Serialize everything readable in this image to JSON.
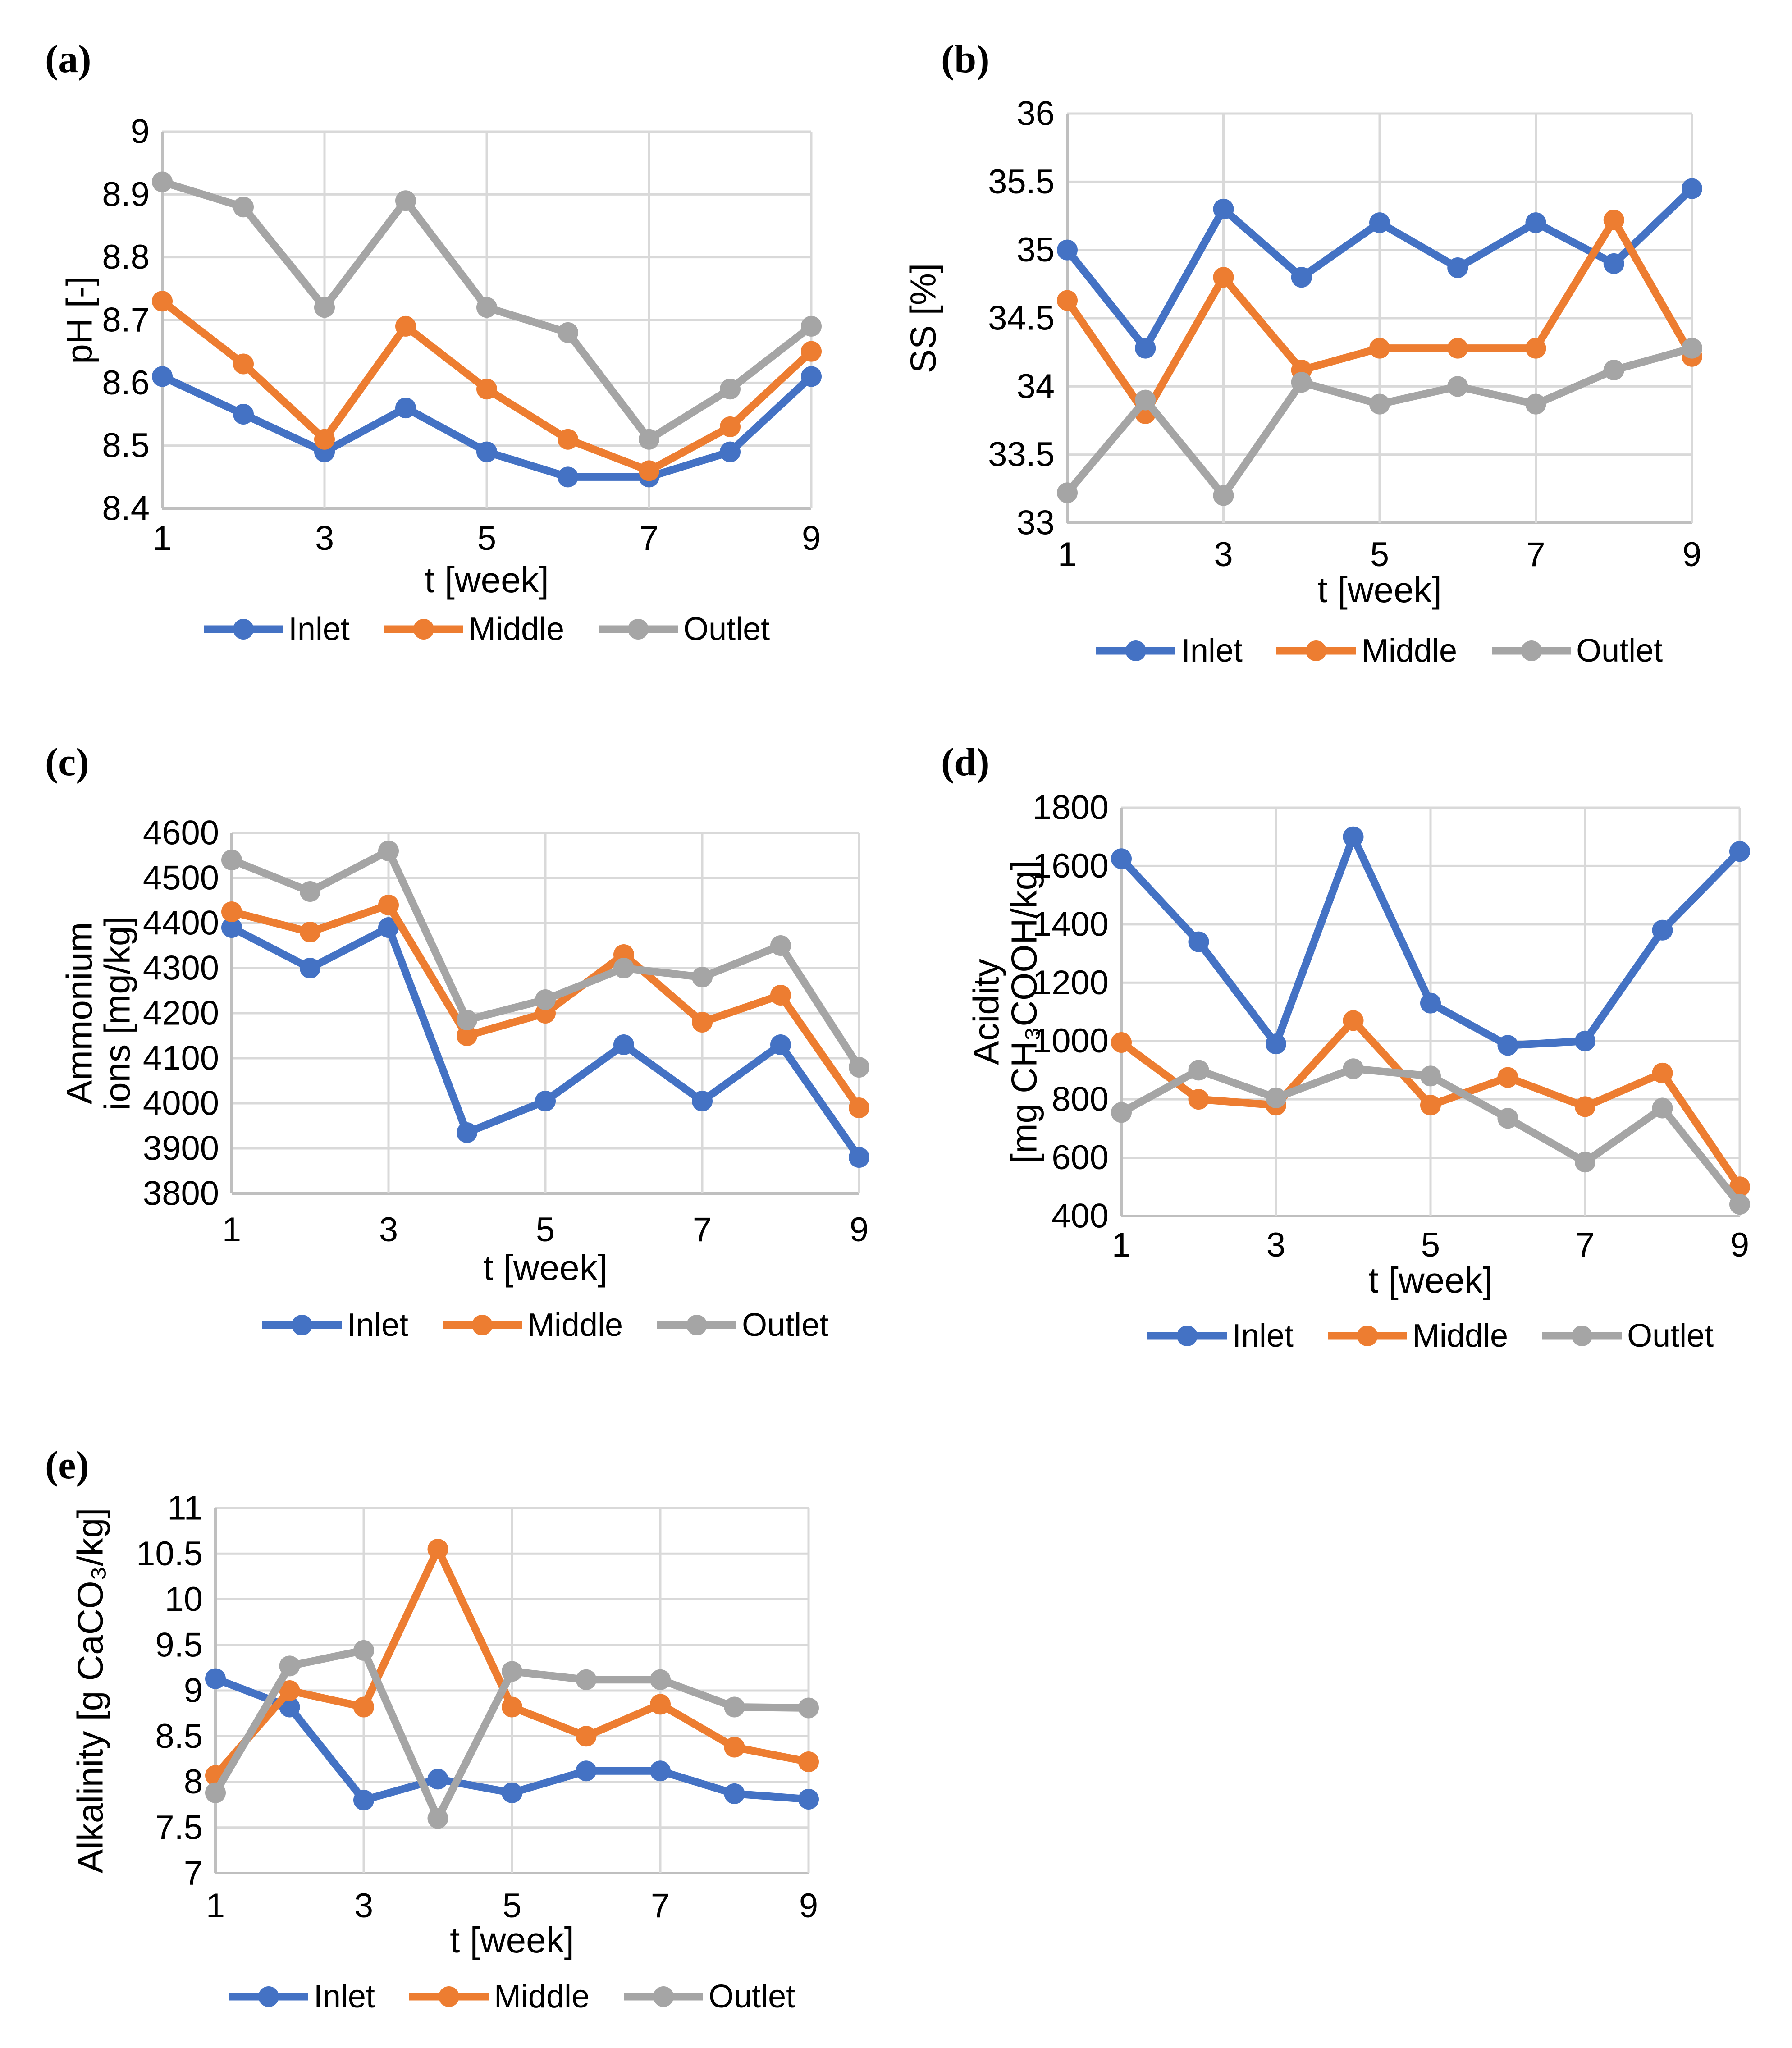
{
  "page": {
    "background": "#ffffff"
  },
  "colors": {
    "inlet": "#4472C4",
    "middle": "#ED7D31",
    "outlet": "#A5A5A5",
    "gridline": "#D9D9D9",
    "axis_line": "#BFBFBF",
    "text": "#000000"
  },
  "chart_data": [
    {
      "panel": "(a)",
      "type": "line",
      "title": "",
      "ylabel_lines": [
        "pH [-]"
      ],
      "xlabel": "t [week]",
      "x": [
        1,
        2,
        3,
        4,
        5,
        6,
        7,
        8,
        9
      ],
      "x_ticks_shown": [
        1,
        3,
        5,
        7,
        9
      ],
      "ylim": [
        8.4,
        9
      ],
      "ystep": 0.1,
      "grid": true,
      "legend_position": "bottom",
      "series": [
        {
          "name": "Inlet",
          "color": "#4472C4",
          "values": [
            8.61,
            8.55,
            8.49,
            8.56,
            8.49,
            8.45,
            8.45,
            8.49,
            8.61
          ]
        },
        {
          "name": "Middle",
          "color": "#ED7D31",
          "values": [
            8.73,
            8.63,
            8.51,
            8.69,
            8.59,
            8.51,
            8.46,
            8.53,
            8.65
          ]
        },
        {
          "name": "Outlet",
          "color": "#A5A5A5",
          "values": [
            8.92,
            8.88,
            8.72,
            8.89,
            8.72,
            8.68,
            8.51,
            8.59,
            8.69
          ]
        }
      ]
    },
    {
      "panel": "(b)",
      "type": "line",
      "title": "",
      "ylabel_lines": [
        "SS [%]"
      ],
      "xlabel": "t [week]",
      "x": [
        1,
        2,
        3,
        4,
        5,
        6,
        7,
        8,
        9
      ],
      "x_ticks_shown": [
        1,
        3,
        5,
        7,
        9
      ],
      "ylim": [
        33,
        36
      ],
      "ystep": 0.5,
      "grid": true,
      "legend_position": "bottom",
      "series": [
        {
          "name": "Inlet",
          "color": "#4472C4",
          "values": [
            35.0,
            34.28,
            35.3,
            34.8,
            35.2,
            34.87,
            35.2,
            34.9,
            35.45
          ]
        },
        {
          "name": "Middle",
          "color": "#ED7D31",
          "values": [
            34.63,
            33.8,
            34.8,
            34.12,
            34.28,
            34.28,
            34.28,
            35.22,
            34.22
          ]
        },
        {
          "name": "Outlet",
          "color": "#A5A5A5",
          "values": [
            33.22,
            33.9,
            33.2,
            34.03,
            33.87,
            34.0,
            33.87,
            34.12,
            34.28
          ]
        }
      ]
    },
    {
      "panel": "(c)",
      "type": "line",
      "title": "",
      "ylabel_lines": [
        "Ammonium",
        "ions [mg/kg]"
      ],
      "xlabel": "t [week]",
      "x": [
        1,
        2,
        3,
        4,
        5,
        6,
        7,
        8,
        9
      ],
      "x_ticks_shown": [
        1,
        3,
        5,
        7,
        9
      ],
      "ylim": [
        3800,
        4600
      ],
      "ystep": 100,
      "grid": true,
      "legend_position": "bottom",
      "series": [
        {
          "name": "Inlet",
          "color": "#4472C4",
          "values": [
            4390,
            4300,
            4390,
            3935,
            4005,
            4130,
            4005,
            4130,
            3880
          ]
        },
        {
          "name": "Middle",
          "color": "#ED7D31",
          "values": [
            4425,
            4380,
            4440,
            4150,
            4200,
            4330,
            4180,
            4240,
            3990
          ]
        },
        {
          "name": "Outlet",
          "color": "#A5A5A5",
          "values": [
            4540,
            4470,
            4560,
            4185,
            4230,
            4300,
            4280,
            4350,
            4080
          ]
        }
      ]
    },
    {
      "panel": "(d)",
      "type": "line",
      "title": "",
      "ylabel_lines": [
        "Acidity",
        "[mg CH₃COOH/kg]"
      ],
      "xlabel": "t [week]",
      "x": [
        1,
        2,
        3,
        4,
        5,
        6,
        7,
        8,
        9
      ],
      "x_ticks_shown": [
        1,
        3,
        5,
        7,
        9
      ],
      "ylim": [
        400,
        1800
      ],
      "ystep": 200,
      "grid": true,
      "legend_position": "bottom",
      "series": [
        {
          "name": "Inlet",
          "color": "#4472C4",
          "values": [
            1625,
            1340,
            990,
            1700,
            1130,
            985,
            1000,
            1380,
            1650
          ]
        },
        {
          "name": "Middle",
          "color": "#ED7D31",
          "values": [
            995,
            800,
            780,
            1070,
            780,
            875,
            775,
            890,
            500
          ]
        },
        {
          "name": "Outlet",
          "color": "#A5A5A5",
          "values": [
            755,
            900,
            805,
            905,
            880,
            735,
            585,
            770,
            440
          ]
        }
      ]
    },
    {
      "panel": "(e)",
      "type": "line",
      "title": "",
      "ylabel_lines": [
        "Alkalinity [g CaCO₃/kg]"
      ],
      "xlabel": "t [week]",
      "x": [
        1,
        2,
        3,
        4,
        5,
        6,
        7,
        8,
        9
      ],
      "x_ticks_shown": [
        1,
        3,
        5,
        7,
        9
      ],
      "ylim": [
        7,
        11
      ],
      "ystep": 0.5,
      "grid": true,
      "legend_position": "bottom",
      "series": [
        {
          "name": "Inlet",
          "color": "#4472C4",
          "values": [
            9.13,
            8.82,
            7.8,
            8.03,
            7.88,
            8.12,
            8.12,
            7.87,
            7.81
          ]
        },
        {
          "name": "Middle",
          "color": "#ED7D31",
          "values": [
            8.07,
            9.0,
            8.82,
            10.55,
            8.82,
            8.5,
            8.85,
            8.38,
            8.22
          ]
        },
        {
          "name": "Outlet",
          "color": "#A5A5A5",
          "values": [
            7.88,
            9.27,
            9.44,
            7.6,
            9.21,
            9.12,
            9.12,
            8.82,
            8.81
          ]
        }
      ]
    }
  ]
}
